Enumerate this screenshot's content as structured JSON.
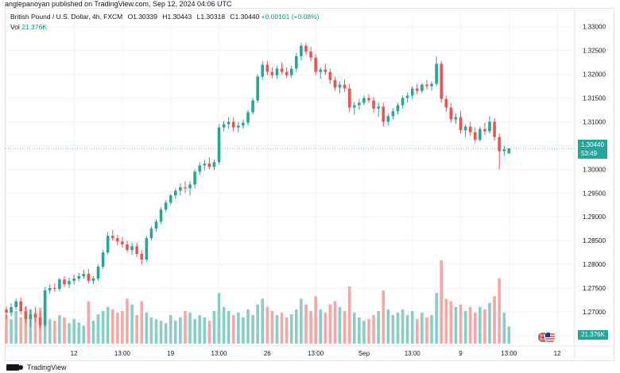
{
  "byline": "anglepanoyan published on TradingView.com, Sep 12, 2024 04:06 UTC",
  "legend": {
    "symbol": "British Pound / U.S. Dollar, 4h, FXCM",
    "open": "O1.30339",
    "high": "H1.30443",
    "low": "L1.30318",
    "close": "C1.30440",
    "change": "+0.00101 (+0.08%)",
    "vol_label": "Vol",
    "vol_value": "21.376K"
  },
  "price_tag": {
    "price": "1.30440",
    "countdown": "53:49"
  },
  "volume_tag": "21.376K",
  "footer_logo": "TradingView",
  "colors": {
    "up": "#26a69a",
    "down": "#ef5350",
    "up_vol": "#89cdc6",
    "down_vol": "#f4a8a6",
    "line": "#26a69a"
  },
  "chart_data": {
    "type": "candlestick",
    "symbol": "GBPUSD",
    "interval": "4h",
    "y_ticks": [
      "1.33000",
      "1.32500",
      "1.32000",
      "1.31500",
      "1.31000",
      "1.30500",
      "1.30000",
      "1.29500",
      "1.29000",
      "1.28500",
      "1.28000",
      "1.27500",
      "1.27000",
      "1.26500"
    ],
    "ylim": [
      1.2628,
      1.3338
    ],
    "x_ticks": [
      {
        "label": "12",
        "bar": 14
      },
      {
        "label": "13:00",
        "bar": 24
      },
      {
        "label": "19",
        "bar": 34
      },
      {
        "label": "13:00",
        "bar": 44
      },
      {
        "label": "26",
        "bar": 54
      },
      {
        "label": "13:00",
        "bar": 64
      },
      {
        "label": "Sep",
        "bar": 74
      },
      {
        "label": "13:00",
        "bar": 84
      },
      {
        "label": "9",
        "bar": 94
      },
      {
        "label": "13:00",
        "bar": 104
      },
      {
        "label": "12",
        "bar": 114
      }
    ],
    "current_price": 1.3044,
    "candles": [
      [
        1.2705,
        1.2712,
        1.2685,
        1.2698,
        35
      ],
      [
        1.2698,
        1.2718,
        1.269,
        1.271,
        30
      ],
      [
        1.271,
        1.2728,
        1.2704,
        1.2722,
        40
      ],
      [
        1.2722,
        1.273,
        1.2695,
        1.2701,
        32
      ],
      [
        1.2701,
        1.2712,
        1.2676,
        1.2685,
        45
      ],
      [
        1.2685,
        1.2704,
        1.2668,
        1.2695,
        42
      ],
      [
        1.2695,
        1.271,
        1.2678,
        1.2688,
        38
      ],
      [
        1.2688,
        1.27,
        1.2665,
        1.2672,
        44
      ],
      [
        1.2672,
        1.2752,
        1.2668,
        1.2745,
        65
      ],
      [
        1.2745,
        1.2758,
        1.2738,
        1.275,
        30
      ],
      [
        1.275,
        1.276,
        1.2742,
        1.2748,
        28
      ],
      [
        1.2748,
        1.2772,
        1.2744,
        1.2768,
        35
      ],
      [
        1.2768,
        1.2775,
        1.2752,
        1.2758,
        32
      ],
      [
        1.2758,
        1.2772,
        1.275,
        1.2765,
        25
      ],
      [
        1.2765,
        1.2778,
        1.2758,
        1.277,
        30
      ],
      [
        1.277,
        1.2782,
        1.2764,
        1.2775,
        26
      ],
      [
        1.2775,
        1.2788,
        1.277,
        1.278,
        22
      ],
      [
        1.278,
        1.279,
        1.276,
        1.2765,
        52
      ],
      [
        1.2765,
        1.2775,
        1.2758,
        1.277,
        28
      ],
      [
        1.277,
        1.28,
        1.2765,
        1.2795,
        36
      ],
      [
        1.2795,
        1.283,
        1.279,
        1.2825,
        40
      ],
      [
        1.2825,
        1.2868,
        1.282,
        1.286,
        45
      ],
      [
        1.286,
        1.2872,
        1.285,
        1.2855,
        42
      ],
      [
        1.2855,
        1.2862,
        1.284,
        1.2848,
        38
      ],
      [
        1.2848,
        1.2858,
        1.2835,
        1.2842,
        40
      ],
      [
        1.2842,
        1.285,
        1.2825,
        1.283,
        55
      ],
      [
        1.283,
        1.2845,
        1.282,
        1.2838,
        48
      ],
      [
        1.2838,
        1.2845,
        1.2815,
        1.2822,
        35
      ],
      [
        1.2822,
        1.283,
        1.28,
        1.281,
        52
      ],
      [
        1.281,
        1.286,
        1.2805,
        1.2855,
        38
      ],
      [
        1.2855,
        1.288,
        1.285,
        1.2875,
        32
      ],
      [
        1.2875,
        1.2895,
        1.2868,
        1.289,
        30
      ],
      [
        1.289,
        1.292,
        1.2885,
        1.2915,
        28
      ],
      [
        1.2915,
        1.2935,
        1.291,
        1.293,
        25
      ],
      [
        1.293,
        1.2948,
        1.2925,
        1.2945,
        35
      ],
      [
        1.2945,
        1.296,
        1.2938,
        1.2955,
        28
      ],
      [
        1.2955,
        1.297,
        1.2945,
        1.2962,
        32
      ],
      [
        1.2962,
        1.2975,
        1.295,
        1.296,
        40
      ],
      [
        1.296,
        1.2975,
        1.2945,
        1.2968,
        38
      ],
      [
        1.2968,
        1.3,
        1.296,
        1.2995,
        30
      ],
      [
        1.2995,
        1.3015,
        1.2988,
        1.3008,
        35
      ],
      [
        1.3008,
        1.302,
        1.2998,
        1.3012,
        32
      ],
      [
        1.3012,
        1.3025,
        1.3,
        1.3005,
        28
      ],
      [
        1.3005,
        1.302,
        1.2998,
        1.3015,
        40
      ],
      [
        1.3015,
        1.3095,
        1.301,
        1.3088,
        62
      ],
      [
        1.3088,
        1.3102,
        1.308,
        1.3095,
        45
      ],
      [
        1.3095,
        1.311,
        1.3085,
        1.31,
        40
      ],
      [
        1.31,
        1.311,
        1.308,
        1.3088,
        35
      ],
      [
        1.3088,
        1.31,
        1.3078,
        1.3092,
        38
      ],
      [
        1.3092,
        1.3105,
        1.3085,
        1.3098,
        32
      ],
      [
        1.3098,
        1.3125,
        1.3092,
        1.312,
        42
      ],
      [
        1.312,
        1.315,
        1.3115,
        1.3145,
        35
      ],
      [
        1.3145,
        1.32,
        1.314,
        1.3195,
        48
      ],
      [
        1.3195,
        1.3228,
        1.3188,
        1.322,
        55
      ],
      [
        1.322,
        1.3228,
        1.3198,
        1.3205,
        45
      ],
      [
        1.3205,
        1.3215,
        1.3192,
        1.3198,
        40
      ],
      [
        1.3198,
        1.3218,
        1.319,
        1.3212,
        35
      ],
      [
        1.3212,
        1.3225,
        1.32,
        1.3205,
        38
      ],
      [
        1.3205,
        1.3215,
        1.3192,
        1.3198,
        32
      ],
      [
        1.3198,
        1.3218,
        1.3192,
        1.3212,
        36
      ],
      [
        1.3212,
        1.3245,
        1.3205,
        1.3238,
        42
      ],
      [
        1.3238,
        1.3266,
        1.323,
        1.326,
        55
      ],
      [
        1.326,
        1.3266,
        1.324,
        1.3248,
        48
      ],
      [
        1.3248,
        1.3258,
        1.3228,
        1.3235,
        40
      ],
      [
        1.3235,
        1.3242,
        1.3198,
        1.3205,
        58
      ],
      [
        1.3205,
        1.3215,
        1.319,
        1.321,
        42
      ],
      [
        1.321,
        1.3222,
        1.3198,
        1.3205,
        38
      ],
      [
        1.3205,
        1.3212,
        1.318,
        1.3188,
        48
      ],
      [
        1.3188,
        1.3195,
        1.3165,
        1.3172,
        52
      ],
      [
        1.3172,
        1.3185,
        1.316,
        1.3178,
        45
      ],
      [
        1.3178,
        1.319,
        1.3162,
        1.317,
        40
      ],
      [
        1.317,
        1.318,
        1.312,
        1.313,
        70
      ],
      [
        1.313,
        1.3142,
        1.3115,
        1.3135,
        38
      ],
      [
        1.3135,
        1.3148,
        1.3125,
        1.314,
        32
      ],
      [
        1.314,
        1.3155,
        1.3135,
        1.315,
        28
      ],
      [
        1.315,
        1.3158,
        1.314,
        1.3145,
        30
      ],
      [
        1.3145,
        1.3152,
        1.312,
        1.3128,
        35
      ],
      [
        1.3128,
        1.314,
        1.311,
        1.3132,
        40
      ],
      [
        1.3132,
        1.314,
        1.309,
        1.31,
        65
      ],
      [
        1.31,
        1.3118,
        1.3092,
        1.3112,
        42
      ],
      [
        1.3112,
        1.3128,
        1.3105,
        1.3122,
        35
      ],
      [
        1.3122,
        1.314,
        1.3115,
        1.3135,
        38
      ],
      [
        1.3135,
        1.3155,
        1.3128,
        1.315,
        42
      ],
      [
        1.315,
        1.3162,
        1.314,
        1.3155,
        35
      ],
      [
        1.3155,
        1.3175,
        1.3148,
        1.317,
        40
      ],
      [
        1.317,
        1.318,
        1.3158,
        1.3165,
        30
      ],
      [
        1.3165,
        1.3182,
        1.316,
        1.3178,
        38
      ],
      [
        1.3178,
        1.3188,
        1.3168,
        1.3175,
        32
      ],
      [
        1.3175,
        1.3185,
        1.3165,
        1.318,
        35
      ],
      [
        1.318,
        1.3238,
        1.3175,
        1.3222,
        62
      ],
      [
        1.3222,
        1.3228,
        1.314,
        1.3148,
        102
      ],
      [
        1.3148,
        1.3155,
        1.312,
        1.313,
        55
      ],
      [
        1.313,
        1.314,
        1.3098,
        1.3105,
        52
      ],
      [
        1.3105,
        1.3118,
        1.3095,
        1.311,
        45
      ],
      [
        1.311,
        1.3122,
        1.3075,
        1.3082,
        48
      ],
      [
        1.3082,
        1.3095,
        1.3068,
        1.309,
        40
      ],
      [
        1.309,
        1.31,
        1.307,
        1.3078,
        45
      ],
      [
        1.3078,
        1.3088,
        1.3055,
        1.3062,
        38
      ],
      [
        1.3062,
        1.309,
        1.3058,
        1.3085,
        45
      ],
      [
        1.3085,
        1.3098,
        1.3072,
        1.308,
        42
      ],
      [
        1.308,
        1.3112,
        1.3075,
        1.31,
        50
      ],
      [
        1.31,
        1.3108,
        1.306,
        1.3068,
        58
      ],
      [
        1.3068,
        1.3075,
        1.3,
        1.3038,
        80
      ],
      [
        1.3038,
        1.305,
        1.3028,
        1.3042,
        38
      ],
      [
        1.3034,
        1.3044,
        1.3032,
        1.3044,
        21
      ]
    ]
  }
}
